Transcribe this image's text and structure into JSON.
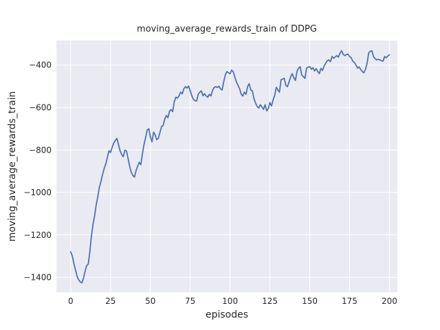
{
  "figure": {
    "title": "moving_average_rewards_train of DDPG",
    "xlabel": "episodes",
    "ylabel": "moving_average_rewards_train"
  },
  "colors": {
    "line": "#4c72b0",
    "axes_background": "#eaeaf2",
    "grid": "#ffffff",
    "figure_background": "#ffffff",
    "text": "#262626"
  },
  "chart_data": {
    "type": "line",
    "title": "moving_average_rewards_train of DDPG",
    "xlabel": "episodes",
    "ylabel": "moving_average_rewards_train",
    "grid": true,
    "legend": false,
    "x_ticks": [
      0,
      25,
      50,
      75,
      100,
      125,
      150,
      175,
      200
    ],
    "y_ticks": [
      -400,
      -600,
      -800,
      -1000,
      -1200,
      -1400
    ],
    "xlim": [
      -9,
      205
    ],
    "ylim": [
      -1470,
      -285
    ],
    "series": [
      {
        "name": "moving_average_rewards_train",
        "x_start": 0,
        "x_step": 1,
        "values": [
          -1280,
          -1300,
          -1335,
          -1365,
          -1395,
          -1412,
          -1422,
          -1426,
          -1405,
          -1372,
          -1345,
          -1338,
          -1280,
          -1205,
          -1150,
          -1110,
          -1058,
          -1020,
          -975,
          -948,
          -915,
          -888,
          -866,
          -835,
          -804,
          -812,
          -788,
          -768,
          -755,
          -746,
          -775,
          -805,
          -822,
          -832,
          -801,
          -805,
          -840,
          -878,
          -905,
          -920,
          -928,
          -898,
          -876,
          -858,
          -870,
          -818,
          -775,
          -742,
          -706,
          -700,
          -738,
          -762,
          -716,
          -730,
          -752,
          -745,
          -718,
          -690,
          -685,
          -655,
          -638,
          -648,
          -618,
          -610,
          -620,
          -572,
          -552,
          -556,
          -545,
          -528,
          -536,
          -512,
          -502,
          -509,
          -499,
          -522,
          -545,
          -562,
          -568,
          -570,
          -538,
          -528,
          -522,
          -545,
          -535,
          -546,
          -552,
          -538,
          -546,
          -520,
          -506,
          -502,
          -506,
          -500,
          -512,
          -518,
          -480,
          -447,
          -431,
          -437,
          -441,
          -424,
          -432,
          -457,
          -480,
          -496,
          -512,
          -538,
          -546,
          -528,
          -538,
          -502,
          -488,
          -518,
          -522,
          -558,
          -580,
          -595,
          -603,
          -587,
          -598,
          -609,
          -587,
          -616,
          -605,
          -577,
          -593,
          -565,
          -544,
          -505,
          -518,
          -528,
          -470,
          -466,
          -463,
          -496,
          -502,
          -480,
          -457,
          -441,
          -460,
          -473,
          -431,
          -415,
          -408,
          -447,
          -455,
          -463,
          -415,
          -410,
          -408,
          -420,
          -413,
          -428,
          -417,
          -430,
          -441,
          -416,
          -426,
          -405,
          -392,
          -380,
          -376,
          -384,
          -360,
          -368,
          -362,
          -356,
          -363,
          -345,
          -333,
          -350,
          -356,
          -351,
          -349,
          -360,
          -366,
          -382,
          -388,
          -400,
          -415,
          -409,
          -421,
          -431,
          -437,
          -420,
          -392,
          -343,
          -336,
          -333,
          -360,
          -370,
          -376,
          -373,
          -376,
          -380,
          -382,
          -360,
          -366,
          -358,
          -352
        ]
      }
    ]
  }
}
